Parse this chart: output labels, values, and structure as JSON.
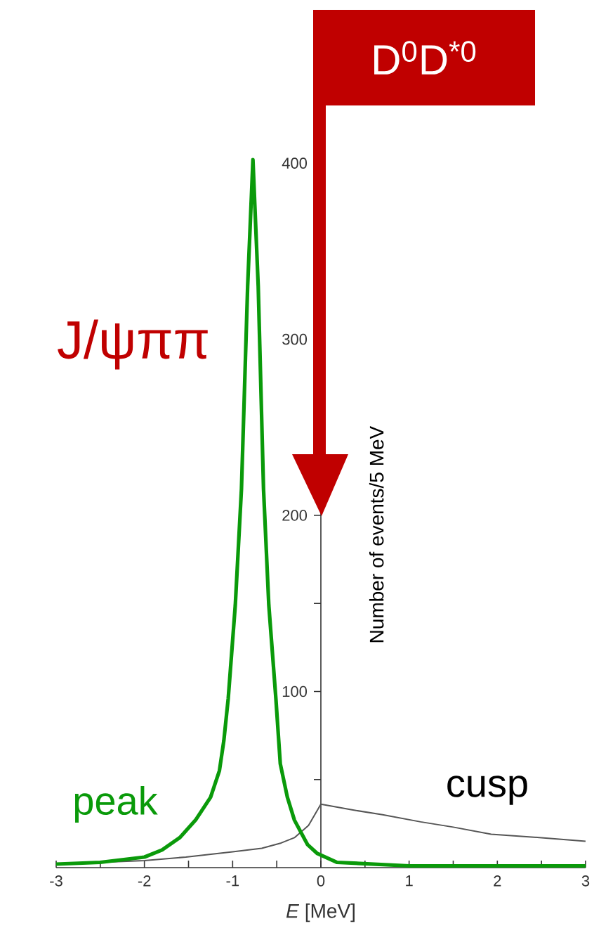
{
  "chart_data": {
    "type": "line",
    "xlabel": "*E* [MeV]",
    "ylabel": "Number of events/5 MeV",
    "series": [
      {
        "name": "cusp",
        "color": "#555555",
        "x": [
          -3,
          -2,
          -1.53,
          -1,
          -0.67,
          -0.45,
          -0.3,
          -0.14,
          0,
          0.33,
          0.7,
          1.13,
          1.5,
          1.93,
          2.5,
          3
        ],
        "values": [
          2,
          4,
          6,
          9,
          11,
          14,
          17,
          24,
          36,
          33,
          30,
          26,
          23,
          19,
          17,
          15
        ]
      },
      {
        "name": "peak",
        "color": "#0a9a0a",
        "x": [
          -3,
          -2.5,
          -2,
          -1.8,
          -1.6,
          -1.42,
          -1.25,
          -1.15,
          -1.1,
          -1.05,
          -0.97,
          -0.9,
          -0.83,
          -0.77,
          -0.71,
          -0.65,
          -0.59,
          -0.51,
          -0.46,
          -0.38,
          -0.3,
          -0.15,
          -0.04,
          0.18,
          1,
          2,
          3
        ],
        "values": [
          2,
          3,
          6,
          10,
          17,
          27,
          40,
          55,
          72,
          96,
          149,
          215,
          330,
          402,
          330,
          215,
          149,
          96,
          59,
          40,
          27,
          13,
          8,
          3,
          1,
          1,
          1
        ]
      }
    ],
    "xlim": [
      -3,
      3
    ],
    "ylim": [
      0,
      420
    ],
    "xticks": [
      -3,
      {
        "value": -2.5,
        "label": null
      },
      -2,
      {
        "value": -1.5,
        "label": null
      },
      -1,
      {
        "value": -0.5,
        "label": null
      },
      0,
      {
        "value": 0.5,
        "label": null
      },
      1,
      {
        "value": 1.5,
        "label": null
      },
      2,
      {
        "value": 2.5,
        "label": null
      },
      3
    ],
    "yticks": [
      {
        "value": 50,
        "label": null
      },
      100,
      {
        "value": 150,
        "label": null
      },
      200,
      {
        "value": 250,
        "label": null
      },
      300,
      {
        "value": 350,
        "label": null
      },
      400
    ],
    "annotations": [
      "J/ψππ",
      "D$^{0}$D$^{*0}$"
    ],
    "grid": false,
    "marker": "none",
    "line_style": "solid"
  }
}
